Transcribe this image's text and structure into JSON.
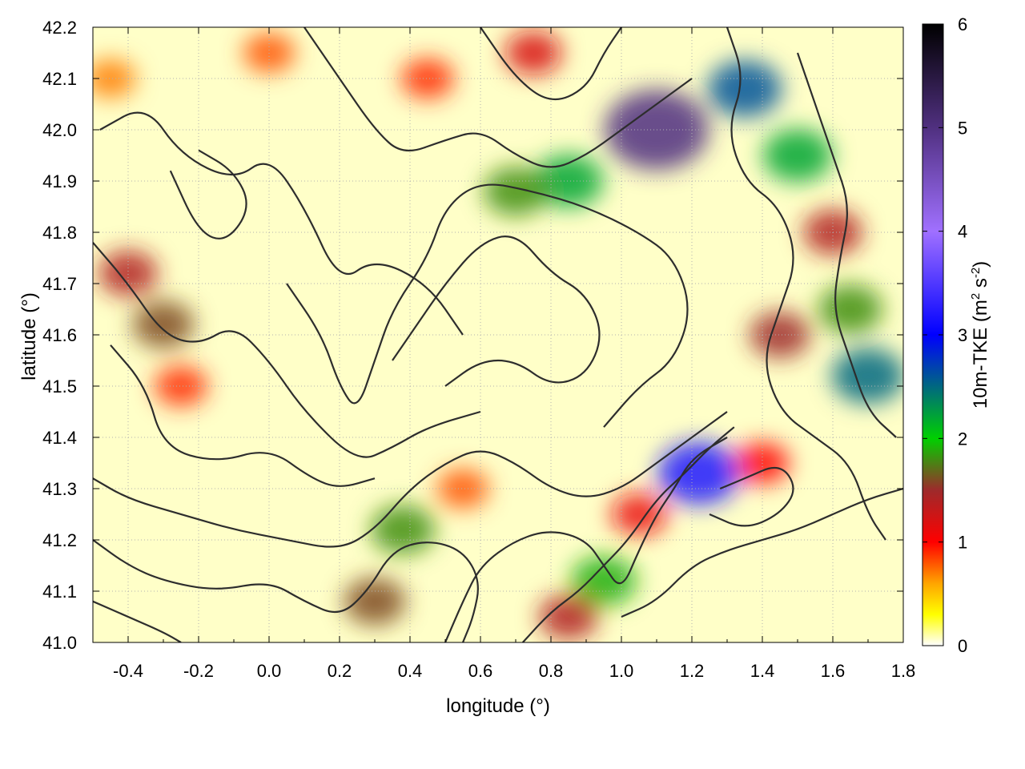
{
  "chart_data": {
    "type": "heatmap",
    "title": "",
    "xlabel": "longitude (°)",
    "ylabel": "latitude (°)",
    "xlim": [
      -0.5,
      1.8
    ],
    "ylim": [
      41.0,
      42.2
    ],
    "xticks": [
      "-0.4",
      "-0.2",
      "0.0",
      "0.2",
      "0.4",
      "0.6",
      "0.8",
      "1.0",
      "1.2",
      "1.4",
      "1.6",
      "1.8"
    ],
    "xtick_values": [
      -0.4,
      -0.2,
      0.0,
      0.2,
      0.4,
      0.6,
      0.8,
      1.0,
      1.2,
      1.4,
      1.6,
      1.8
    ],
    "yticks": [
      "41.0",
      "41.1",
      "41.2",
      "41.3",
      "41.4",
      "41.5",
      "41.6",
      "41.7",
      "41.8",
      "41.9",
      "42.0",
      "42.1",
      "42.2"
    ],
    "ytick_values": [
      41.0,
      41.1,
      41.2,
      41.3,
      41.4,
      41.5,
      41.6,
      41.7,
      41.8,
      41.9,
      42.0,
      42.1,
      42.2
    ],
    "grid": true,
    "colorbar": {
      "label_main": "10m-TKE (m",
      "label_sup1": "2",
      "label_mid": " s",
      "label_sup2": "-2",
      "label_end": ")",
      "min": 0,
      "max": 6,
      "ticks": [
        "0",
        "1",
        "2",
        "3",
        "4",
        "5",
        "6"
      ],
      "tick_values": [
        0,
        1,
        2,
        3,
        4,
        5,
        6
      ],
      "stops": [
        {
          "value": 0.0,
          "color": "#ffffff"
        },
        {
          "value": 0.3,
          "color": "#ffff00"
        },
        {
          "value": 0.6,
          "color": "#ffa500"
        },
        {
          "value": 1.0,
          "color": "#ff0000"
        },
        {
          "value": 1.5,
          "color": "#9e2a2b"
        },
        {
          "value": 2.0,
          "color": "#00d000"
        },
        {
          "value": 3.0,
          "color": "#0000ff"
        },
        {
          "value": 4.0,
          "color": "#a070ff"
        },
        {
          "value": 5.0,
          "color": "#503080"
        },
        {
          "value": 6.0,
          "color": "#000000"
        }
      ]
    },
    "hotspots": [
      {
        "lon": -0.45,
        "lat": 42.1,
        "tke": 0.7
      },
      {
        "lon": -0.3,
        "lat": 41.62,
        "tke": 1.6
      },
      {
        "lon": -0.4,
        "lat": 41.72,
        "tke": 1.4
      },
      {
        "lon": -0.25,
        "lat": 41.5,
        "tke": 0.9
      },
      {
        "lon": 0.3,
        "lat": 41.08,
        "tke": 1.6
      },
      {
        "lon": 0.38,
        "lat": 41.22,
        "tke": 1.8
      },
      {
        "lon": 0.85,
        "lat": 41.9,
        "tke": 2.2
      },
      {
        "lon": 0.7,
        "lat": 41.88,
        "tke": 1.8
      },
      {
        "lon": 1.1,
        "lat": 42.0,
        "tke": 5.0
      },
      {
        "lon": 1.35,
        "lat": 42.08,
        "tke": 2.6
      },
      {
        "lon": 1.5,
        "lat": 41.95,
        "tke": 2.2
      },
      {
        "lon": 1.6,
        "lat": 41.8,
        "tke": 1.4
      },
      {
        "lon": 1.65,
        "lat": 41.65,
        "tke": 1.8
      },
      {
        "lon": 1.45,
        "lat": 41.6,
        "tke": 1.5
      },
      {
        "lon": 1.7,
        "lat": 41.52,
        "tke": 2.5
      },
      {
        "lon": 1.22,
        "lat": 41.33,
        "tke": 3.2
      },
      {
        "lon": 0.95,
        "lat": 41.12,
        "tke": 1.9
      },
      {
        "lon": 0.85,
        "lat": 41.05,
        "tke": 1.4
      },
      {
        "lon": 1.05,
        "lat": 41.25,
        "tke": 1.1
      },
      {
        "lon": 0.75,
        "lat": 42.15,
        "tke": 1.2
      },
      {
        "lon": 0.55,
        "lat": 41.3,
        "tke": 0.8
      },
      {
        "lon": 1.4,
        "lat": 41.35,
        "tke": 1.0
      },
      {
        "lon": 0.0,
        "lat": 42.15,
        "tke": 0.8
      },
      {
        "lon": 0.45,
        "lat": 42.1,
        "tke": 0.9
      }
    ],
    "contours": [
      [
        [
          -0.48,
          42.0
        ],
        [
          -0.35,
          42.05
        ],
        [
          -0.25,
          41.95
        ],
        [
          -0.1,
          41.9
        ],
        [
          0.0,
          41.95
        ],
        [
          0.1,
          41.85
        ],
        [
          0.2,
          41.7
        ],
        [
          0.3,
          41.75
        ],
        [
          0.45,
          41.7
        ],
        [
          0.55,
          41.6
        ]
      ],
      [
        [
          -0.28,
          41.92
        ],
        [
          -0.2,
          41.8
        ],
        [
          -0.12,
          41.78
        ],
        [
          -0.05,
          41.85
        ],
        [
          -0.1,
          41.92
        ],
        [
          -0.2,
          41.96
        ]
      ],
      [
        [
          -0.5,
          41.78
        ],
        [
          -0.4,
          41.7
        ],
        [
          -0.3,
          41.6
        ],
        [
          -0.2,
          41.58
        ],
        [
          -0.1,
          41.62
        ],
        [
          0.0,
          41.55
        ],
        [
          0.1,
          41.45
        ],
        [
          0.25,
          41.35
        ],
        [
          0.35,
          41.38
        ],
        [
          0.45,
          41.42
        ],
        [
          0.6,
          41.45
        ]
      ],
      [
        [
          -0.45,
          41.58
        ],
        [
          -0.35,
          41.5
        ],
        [
          -0.3,
          41.38
        ],
        [
          -0.15,
          41.35
        ],
        [
          0.0,
          41.38
        ],
        [
          0.12,
          41.32
        ],
        [
          0.2,
          41.3
        ],
        [
          0.3,
          41.32
        ]
      ],
      [
        [
          0.05,
          41.7
        ],
        [
          0.15,
          41.6
        ],
        [
          0.2,
          41.5
        ],
        [
          0.25,
          41.45
        ],
        [
          0.3,
          41.55
        ],
        [
          0.35,
          41.65
        ],
        [
          0.45,
          41.75
        ],
        [
          0.5,
          41.85
        ],
        [
          0.6,
          41.9
        ],
        [
          0.75,
          41.88
        ],
        [
          0.9,
          41.85
        ],
        [
          1.05,
          41.8
        ],
        [
          1.15,
          41.75
        ],
        [
          1.2,
          41.65
        ],
        [
          1.15,
          41.55
        ],
        [
          1.05,
          41.5
        ],
        [
          0.95,
          41.42
        ]
      ],
      [
        [
          0.35,
          41.55
        ],
        [
          0.42,
          41.62
        ],
        [
          0.5,
          41.7
        ],
        [
          0.6,
          41.78
        ],
        [
          0.7,
          41.8
        ],
        [
          0.8,
          41.72
        ],
        [
          0.9,
          41.68
        ],
        [
          0.95,
          41.6
        ],
        [
          0.9,
          41.52
        ],
        [
          0.8,
          41.5
        ],
        [
          0.7,
          41.55
        ],
        [
          0.6,
          41.55
        ],
        [
          0.5,
          41.5
        ]
      ],
      [
        [
          0.1,
          42.2
        ],
        [
          0.2,
          42.1
        ],
        [
          0.3,
          42.0
        ],
        [
          0.38,
          41.95
        ],
        [
          0.5,
          41.98
        ],
        [
          0.6,
          42.0
        ],
        [
          0.7,
          41.95
        ],
        [
          0.8,
          41.92
        ],
        [
          0.9,
          41.95
        ],
        [
          1.0,
          42.0
        ],
        [
          1.1,
          42.05
        ],
        [
          1.2,
          42.1
        ]
      ],
      [
        [
          0.6,
          42.2
        ],
        [
          0.7,
          42.1
        ],
        [
          0.8,
          42.05
        ],
        [
          0.9,
          42.08
        ],
        [
          0.95,
          42.15
        ],
        [
          1.0,
          42.2
        ]
      ],
      [
        [
          1.3,
          42.2
        ],
        [
          1.35,
          42.1
        ],
        [
          1.3,
          42.0
        ],
        [
          1.35,
          41.9
        ],
        [
          1.45,
          41.85
        ],
        [
          1.5,
          41.75
        ],
        [
          1.45,
          41.65
        ],
        [
          1.4,
          41.55
        ],
        [
          1.45,
          41.45
        ],
        [
          1.55,
          41.4
        ],
        [
          1.65,
          41.35
        ],
        [
          1.7,
          41.25
        ],
        [
          1.75,
          41.2
        ]
      ],
      [
        [
          1.5,
          42.15
        ],
        [
          1.55,
          42.05
        ],
        [
          1.6,
          41.95
        ],
        [
          1.65,
          41.85
        ],
        [
          1.62,
          41.75
        ],
        [
          1.6,
          41.65
        ],
        [
          1.65,
          41.55
        ],
        [
          1.7,
          41.45
        ],
        [
          1.78,
          41.4
        ]
      ],
      [
        [
          -0.5,
          41.32
        ],
        [
          -0.4,
          41.28
        ],
        [
          -0.25,
          41.25
        ],
        [
          -0.1,
          41.22
        ],
        [
          0.05,
          41.2
        ],
        [
          0.2,
          41.18
        ],
        [
          0.3,
          41.22
        ],
        [
          0.4,
          41.3
        ],
        [
          0.5,
          41.35
        ],
        [
          0.6,
          41.38
        ],
        [
          0.7,
          41.35
        ],
        [
          0.8,
          41.3
        ],
        [
          0.9,
          41.28
        ],
        [
          1.0,
          41.3
        ],
        [
          1.1,
          41.35
        ],
        [
          1.2,
          41.4
        ],
        [
          1.3,
          41.45
        ]
      ],
      [
        [
          -0.5,
          41.2
        ],
        [
          -0.4,
          41.15
        ],
        [
          -0.3,
          41.12
        ],
        [
          -0.15,
          41.1
        ],
        [
          0.0,
          41.12
        ],
        [
          0.1,
          41.08
        ],
        [
          0.2,
          41.05
        ],
        [
          0.28,
          41.1
        ],
        [
          0.35,
          41.18
        ],
        [
          0.45,
          41.2
        ],
        [
          0.55,
          41.18
        ],
        [
          0.6,
          41.12
        ],
        [
          0.58,
          41.05
        ],
        [
          0.55,
          41.0
        ]
      ],
      [
        [
          0.5,
          41.0
        ],
        [
          0.55,
          41.08
        ],
        [
          0.6,
          41.15
        ],
        [
          0.7,
          41.2
        ],
        [
          0.8,
          41.22
        ],
        [
          0.9,
          41.2
        ],
        [
          0.95,
          41.15
        ],
        [
          1.0,
          41.1
        ],
        [
          1.05,
          41.18
        ],
        [
          1.1,
          41.25
        ],
        [
          1.15,
          41.3
        ],
        [
          1.2,
          41.36
        ],
        [
          1.3,
          41.4
        ]
      ],
      [
        [
          0.72,
          41.0
        ],
        [
          0.8,
          41.06
        ],
        [
          0.88,
          41.1
        ],
        [
          0.95,
          41.15
        ],
        [
          1.02,
          41.2
        ],
        [
          1.1,
          41.28
        ],
        [
          1.18,
          41.33
        ],
        [
          1.25,
          41.38
        ],
        [
          1.32,
          41.42
        ]
      ],
      [
        [
          1.0,
          41.05
        ],
        [
          1.1,
          41.08
        ],
        [
          1.2,
          41.15
        ],
        [
          1.3,
          41.18
        ],
        [
          1.4,
          41.2
        ],
        [
          1.5,
          41.22
        ],
        [
          1.6,
          41.25
        ],
        [
          1.7,
          41.28
        ],
        [
          1.8,
          41.3
        ]
      ],
      [
        [
          1.25,
          41.25
        ],
        [
          1.35,
          41.22
        ],
        [
          1.45,
          41.25
        ],
        [
          1.5,
          41.3
        ],
        [
          1.45,
          41.35
        ],
        [
          1.35,
          41.32
        ],
        [
          1.28,
          41.3
        ]
      ],
      [
        [
          -0.5,
          41.08
        ],
        [
          -0.4,
          41.05
        ],
        [
          -0.3,
          41.02
        ],
        [
          -0.25,
          41.0
        ]
      ]
    ]
  }
}
